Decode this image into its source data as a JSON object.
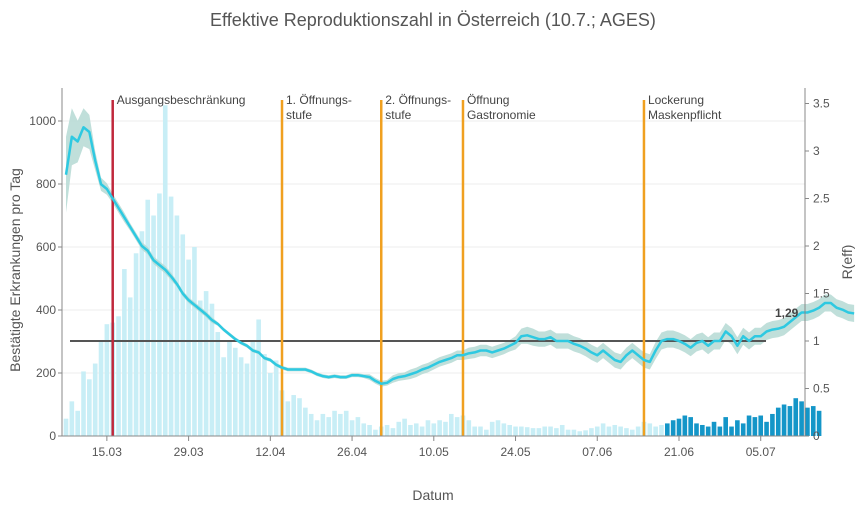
{
  "chart_data": {
    "type": "bar+line",
    "title": "Effektive Reproduktionszahl in Österreich (10.7.; AGES)",
    "xlabel": "Datum",
    "ylabel_left": "Bestätigte Erkrankungen pro Tag",
    "ylabel_right": "R(eff)",
    "ylim_left": [
      0,
      1100
    ],
    "ylim_right": [
      0,
      3.7
    ],
    "left_ticks": [
      "0",
      "200",
      "400",
      "600",
      "800",
      "1000"
    ],
    "right_ticks": [
      "0",
      "0.5",
      "1",
      "1.5",
      "2",
      "2.5",
      "3",
      "3.5"
    ],
    "x_ticks": [
      "15.03",
      "29.03",
      "12.04",
      "26.04",
      "10.05",
      "24.05",
      "07.06",
      "21.06",
      "05.07"
    ],
    "start_date": "2020-03-08",
    "reference_line_r": 1,
    "end_value_label": "1,29",
    "colors": {
      "bar_light": "#c8eef6",
      "bar_dark": "#1496c8",
      "r_line": "#2ec9e1",
      "r_band": "#b5d9d3",
      "lockdown_line": "#c0283c",
      "event_line": "#f0a020",
      "reference_line": "#555555"
    },
    "events": [
      {
        "date": "2020-03-16",
        "label": [
          "Ausgangsbeschränkung"
        ],
        "kind": "lockdown"
      },
      {
        "date": "2020-04-14",
        "label": [
          "1. Öffnungs-",
          "stufe"
        ],
        "kind": "opening"
      },
      {
        "date": "2020-05-01",
        "label": [
          "2. Öffnungs-",
          "stufe"
        ],
        "kind": "opening"
      },
      {
        "date": "2020-05-15",
        "label": [
          "Öffnung",
          "Gastronomie"
        ],
        "kind": "opening"
      },
      {
        "date": "2020-06-15",
        "label": [
          "Lockerung",
          "Maskenpflicht"
        ],
        "kind": "opening"
      }
    ],
    "bars": {
      "start": "2020-03-08",
      "highlight_from_index": 103,
      "values": [
        55,
        110,
        80,
        205,
        180,
        230,
        300,
        355,
        360,
        380,
        530,
        440,
        580,
        650,
        750,
        700,
        770,
        1050,
        760,
        700,
        640,
        560,
        600,
        430,
        460,
        420,
        330,
        250,
        300,
        280,
        250,
        230,
        300,
        370,
        260,
        200,
        240,
        145,
        110,
        130,
        120,
        90,
        70,
        50,
        70,
        60,
        80,
        70,
        80,
        50,
        60,
        40,
        35,
        20,
        30,
        35,
        25,
        45,
        55,
        35,
        40,
        30,
        50,
        40,
        50,
        45,
        70,
        60,
        65,
        50,
        30,
        30,
        20,
        45,
        50,
        40,
        35,
        30,
        30,
        28,
        25,
        25,
        30,
        30,
        25,
        35,
        20,
        20,
        15,
        18,
        25,
        30,
        40,
        30,
        35,
        30,
        25,
        20,
        30,
        45,
        40,
        30,
        35,
        40,
        50,
        55,
        65,
        60,
        40,
        35,
        30,
        45,
        30,
        60,
        30,
        50,
        40,
        65,
        60,
        65,
        45,
        70,
        90,
        100,
        95,
        120,
        110,
        90,
        95,
        80
      ]
    },
    "r_series": {
      "start": "2020-03-08",
      "values": [
        2.75,
        3.15,
        3.1,
        3.25,
        3.2,
        2.9,
        2.65,
        2.6,
        2.5,
        2.4,
        2.3,
        2.2,
        2.1,
        2.0,
        1.95,
        1.85,
        1.8,
        1.75,
        1.68,
        1.6,
        1.5,
        1.43,
        1.38,
        1.33,
        1.28,
        1.22,
        1.18,
        1.12,
        1.07,
        1.02,
        0.98,
        0.95,
        0.9,
        0.88,
        0.82,
        0.8,
        0.75,
        0.72,
        0.7,
        0.7,
        0.7,
        0.7,
        0.68,
        0.65,
        0.63,
        0.62,
        0.63,
        0.62,
        0.62,
        0.64,
        0.64,
        0.63,
        0.62,
        0.58,
        0.55,
        0.56,
        0.6,
        0.62,
        0.63,
        0.65,
        0.67,
        0.7,
        0.72,
        0.75,
        0.78,
        0.8,
        0.82,
        0.85,
        0.85,
        0.87,
        0.88,
        0.9,
        0.9,
        0.88,
        0.9,
        0.92,
        0.95,
        0.98,
        1.05,
        1.06,
        1.04,
        1.02,
        1.02,
        1.04,
        1.0,
        1.0,
        1.0,
        0.97,
        0.95,
        0.92,
        0.88,
        0.85,
        0.9,
        0.85,
        0.8,
        0.78,
        0.85,
        0.9,
        0.85,
        0.8,
        0.78,
        0.9,
        1.0,
        1.02,
        1.02,
        1.0,
        0.97,
        0.93,
        0.98,
        1.0,
        0.95,
        1.0,
        1.0,
        1.1,
        1.05,
        0.95,
        1.05,
        1.0,
        1.05,
        1.05,
        1.1,
        1.12,
        1.13,
        1.15,
        1.2,
        1.25,
        1.3,
        1.3,
        1.32,
        1.35,
        1.4,
        1.4,
        1.35,
        1.33,
        1.3,
        1.29
      ],
      "band_halfwidth": [
        0.4,
        0.3,
        0.22,
        0.2,
        0.18,
        0.1,
        0.07,
        0.06,
        0.05,
        0.05,
        0.05,
        0.04,
        0.04,
        0.04,
        0.04,
        0.04,
        0.04,
        0.04,
        0.04,
        0.03,
        0.03,
        0.03,
        0.03,
        0.03,
        0.03,
        0.03,
        0.02,
        0.02,
        0.02,
        0.02,
        0.02,
        0.02,
        0.02,
        0.02,
        0.02,
        0.02,
        0.02,
        0.02,
        0.02,
        0.02,
        0.02,
        0.02,
        0.02,
        0.02,
        0.02,
        0.02,
        0.02,
        0.02,
        0.02,
        0.02,
        0.02,
        0.02,
        0.03,
        0.03,
        0.03,
        0.03,
        0.04,
        0.04,
        0.04,
        0.05,
        0.05,
        0.05,
        0.05,
        0.05,
        0.05,
        0.05,
        0.05,
        0.05,
        0.05,
        0.06,
        0.06,
        0.06,
        0.06,
        0.06,
        0.06,
        0.06,
        0.06,
        0.07,
        0.08,
        0.09,
        0.09,
        0.08,
        0.08,
        0.08,
        0.08,
        0.08,
        0.08,
        0.08,
        0.08,
        0.08,
        0.08,
        0.08,
        0.08,
        0.08,
        0.08,
        0.08,
        0.08,
        0.08,
        0.08,
        0.08,
        0.08,
        0.09,
        0.09,
        0.09,
        0.09,
        0.09,
        0.09,
        0.09,
        0.09,
        0.09,
        0.09,
        0.09,
        0.09,
        0.09,
        0.09,
        0.09,
        0.09,
        0.09,
        0.09,
        0.09,
        0.09,
        0.09,
        0.09,
        0.09,
        0.09,
        0.09,
        0.09,
        0.09,
        0.09,
        0.09,
        0.09,
        0.09,
        0.09,
        0.09,
        0.09,
        0.09
      ]
    }
  }
}
